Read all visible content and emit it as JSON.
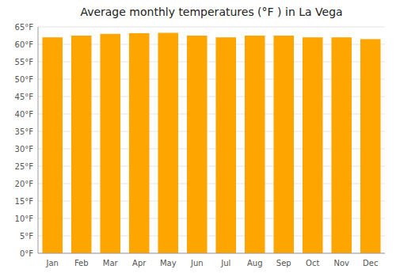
{
  "chart_data": {
    "type": "bar",
    "title": "Average monthly temperatures (°F ) in La Vega",
    "categories": [
      "Jan",
      "Feb",
      "Mar",
      "Apr",
      "May",
      "Jun",
      "Jul",
      "Aug",
      "Sep",
      "Oct",
      "Nov",
      "Dec"
    ],
    "values": [
      62.0,
      62.5,
      63.0,
      63.2,
      63.3,
      62.5,
      62.0,
      62.5,
      62.5,
      62.0,
      62.0,
      61.5
    ],
    "color": "#FFA500",
    "ylim": [
      0,
      65
    ],
    "yticks": [
      {
        "value": 0,
        "label": "0°F"
      },
      {
        "value": 5,
        "label": "5°F"
      },
      {
        "value": 10,
        "label": "10°F"
      },
      {
        "value": 15,
        "label": "15°F"
      },
      {
        "value": 20,
        "label": "20°F"
      },
      {
        "value": 25,
        "label": "25°F"
      },
      {
        "value": 30,
        "label": "30°F"
      },
      {
        "value": 35,
        "label": "35°F"
      },
      {
        "value": 40,
        "label": "40°F"
      },
      {
        "value": 45,
        "label": "45°F"
      },
      {
        "value": 50,
        "label": "50°F"
      },
      {
        "value": 55,
        "label": "55°F"
      },
      {
        "value": 60,
        "label": "60°F"
      },
      {
        "value": 65,
        "label": "65°F"
      }
    ],
    "grid": true
  }
}
